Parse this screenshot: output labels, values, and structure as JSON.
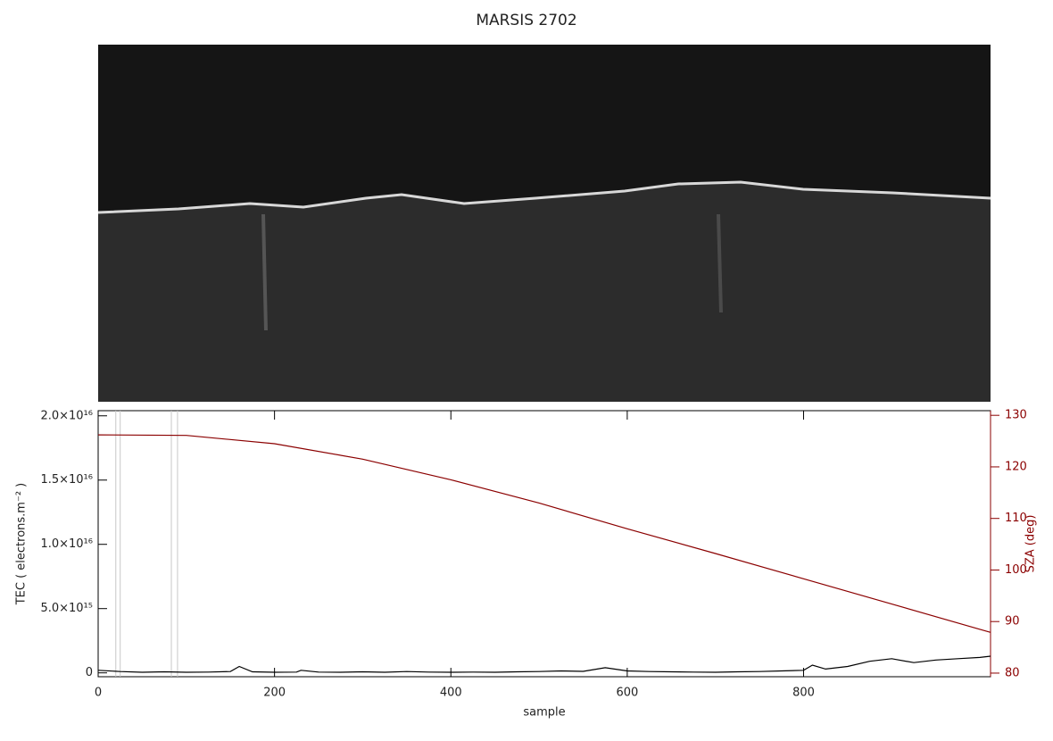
{
  "chart_data": {
    "type": "line",
    "title": "MARSIS 2702",
    "x_label": "sample",
    "y_label": "TEC ( electrons.m⁻² )",
    "y2_label": "SZA (deg)",
    "xlim": [
      0,
      1012
    ],
    "xticks": [
      0,
      200,
      400,
      600,
      800
    ],
    "ylim": [
      -300000000000000,
      20400000000000000
    ],
    "yticks": [
      {
        "value": 0,
        "label": "0"
      },
      {
        "value": 5000000000000000,
        "label": "5.0×10¹⁵"
      },
      {
        "value": 10000000000000000,
        "label": "1.0×10¹⁶"
      },
      {
        "value": 15000000000000000,
        "label": "1.5×10¹⁶"
      },
      {
        "value": 20000000000000000,
        "label": "2.0×10¹⁶"
      }
    ],
    "y2lim": [
      79.3,
      130.9
    ],
    "y2ticks": [
      80,
      90,
      100,
      110,
      120,
      130
    ],
    "y2_color": "#8b0000",
    "vlines": [
      20,
      25,
      83,
      90
    ],
    "series": [
      {
        "name": "TEC",
        "color": "#000000",
        "x": [
          0,
          25,
          50,
          75,
          100,
          125,
          150,
          160,
          175,
          200,
          225,
          230,
          250,
          275,
          300,
          325,
          350,
          375,
          400,
          425,
          450,
          475,
          500,
          525,
          550,
          575,
          600,
          625,
          650,
          675,
          700,
          725,
          750,
          775,
          800,
          810,
          825,
          850,
          875,
          900,
          925,
          950,
          975,
          1000,
          1012
        ],
        "values": [
          200000000000000,
          100000000000000,
          50000000000000,
          80000000000000,
          50000000000000,
          60000000000000,
          100000000000000,
          500000000000000,
          80000000000000,
          50000000000000,
          60000000000000,
          200000000000000,
          60000000000000,
          50000000000000,
          80000000000000,
          50000000000000,
          100000000000000,
          60000000000000,
          50000000000000,
          60000000000000,
          50000000000000,
          80000000000000,
          100000000000000,
          150000000000000,
          120000000000000,
          400000000000000,
          150000000000000,
          100000000000000,
          80000000000000,
          60000000000000,
          50000000000000,
          80000000000000,
          100000000000000,
          150000000000000,
          200000000000000,
          600000000000000,
          300000000000000,
          500000000000000,
          900000000000000,
          1100000000000000,
          800000000000000,
          1000000000000000,
          1100000000000000,
          1200000000000000,
          1300000000000000
        ]
      },
      {
        "name": "SZA",
        "color": "#8b0000",
        "axis": "y2",
        "x": [
          0,
          100,
          200,
          300,
          400,
          500,
          600,
          700,
          800,
          900,
          1000,
          1012
        ],
        "values": [
          126.2,
          126.1,
          124.5,
          121.5,
          117.5,
          113,
          108,
          103.2,
          98.3,
          93.4,
          88.5,
          87.9
        ]
      }
    ]
  }
}
